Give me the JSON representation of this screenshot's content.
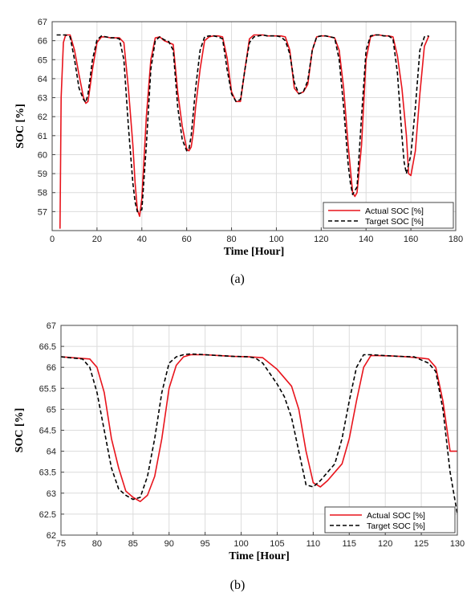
{
  "chart_data": [
    {
      "type": "line",
      "caption": "(a)",
      "xlabel": "Time [Hour]",
      "ylabel": "SOC [%]",
      "xlim": [
        0,
        180
      ],
      "ylim": [
        56,
        67
      ],
      "xticks": [
        0,
        20,
        40,
        60,
        80,
        100,
        120,
        140,
        160,
        180
      ],
      "yticks": [
        57,
        58,
        59,
        60,
        61,
        62,
        63,
        64,
        65,
        66,
        67
      ],
      "grid": true,
      "legend_position": "bottom-right",
      "series": [
        {
          "name": "Actual SOC [%]",
          "color": "#e8141c",
          "style": "solid",
          "x": [
            3.5,
            4,
            5,
            6,
            8,
            10,
            12,
            14,
            15,
            16,
            18,
            20,
            22,
            24,
            26,
            28,
            30,
            32,
            34,
            36,
            37,
            38,
            39,
            40,
            42,
            44,
            46,
            48,
            50,
            52,
            54,
            56,
            58,
            60,
            61,
            62,
            63,
            64,
            66,
            68,
            70,
            72,
            74,
            76,
            78,
            80,
            82,
            84,
            86,
            88,
            90,
            92,
            94,
            96,
            98,
            100,
            102,
            104,
            106,
            108,
            110,
            112,
            114,
            116,
            118,
            120,
            122,
            124,
            126,
            128,
            130,
            132,
            134,
            135,
            136,
            138,
            140,
            142,
            144,
            146,
            148,
            150,
            152,
            154,
            156,
            158,
            159,
            160,
            162,
            164,
            166,
            168
          ],
          "values": [
            56.1,
            63.0,
            65.9,
            66.3,
            66.3,
            65.5,
            64.2,
            63.0,
            62.7,
            62.8,
            64.5,
            65.9,
            66.2,
            66.2,
            66.15,
            66.15,
            66.15,
            65.9,
            63.5,
            60.5,
            58.5,
            57.1,
            56.75,
            57.7,
            62.0,
            65.0,
            66.15,
            66.2,
            66.0,
            65.9,
            65.8,
            63.3,
            61.5,
            60.3,
            60.2,
            60.4,
            61.2,
            62.5,
            64.5,
            66.0,
            66.2,
            66.25,
            66.25,
            66.2,
            65.1,
            63.3,
            62.8,
            62.8,
            64.5,
            66.1,
            66.3,
            66.3,
            66.3,
            66.25,
            66.25,
            66.25,
            66.25,
            66.2,
            65.5,
            63.5,
            63.2,
            63.3,
            63.7,
            65.5,
            66.2,
            66.25,
            66.25,
            66.2,
            66.15,
            65.5,
            63.5,
            60.5,
            58.0,
            57.8,
            58.0,
            60.5,
            65.0,
            66.2,
            66.3,
            66.3,
            66.25,
            66.25,
            66.2,
            65.2,
            63.5,
            61.0,
            59.0,
            58.9,
            60.2,
            63.2,
            65.7,
            66.25
          ]
        },
        {
          "name": "Target SOC [%]",
          "color": "#000000",
          "style": "dashed",
          "x": [
            2,
            4,
            6,
            8,
            10,
            12,
            14,
            15,
            16,
            18,
            20,
            22,
            24,
            26,
            28,
            30,
            32,
            34,
            36,
            37,
            38,
            40,
            42,
            44,
            46,
            48,
            50,
            52,
            54,
            56,
            58,
            60,
            61,
            62,
            64,
            66,
            68,
            70,
            72,
            74,
            76,
            78,
            80,
            82,
            84,
            86,
            88,
            90,
            92,
            94,
            96,
            98,
            100,
            102,
            104,
            106,
            108,
            110,
            112,
            114,
            116,
            118,
            120,
            122,
            124,
            126,
            128,
            130,
            132,
            133,
            134,
            136,
            138,
            140,
            142,
            144,
            146,
            148,
            150,
            152,
            154,
            156,
            157,
            158,
            160,
            162,
            164,
            166,
            168
          ],
          "values": [
            66.3,
            66.3,
            66.3,
            66.2,
            65.0,
            63.5,
            62.9,
            62.75,
            63.2,
            65.0,
            66.05,
            66.25,
            66.2,
            66.15,
            66.15,
            66.1,
            65.0,
            61.5,
            58.5,
            57.5,
            57.0,
            57.1,
            60.5,
            64.5,
            66.0,
            66.2,
            66.05,
            65.95,
            65.5,
            62.5,
            60.8,
            60.2,
            60.3,
            61.0,
            63.5,
            65.5,
            66.2,
            66.25,
            66.25,
            66.2,
            66.1,
            64.5,
            63.2,
            62.8,
            62.9,
            64.5,
            65.9,
            66.2,
            66.25,
            66.3,
            66.25,
            66.25,
            66.25,
            66.2,
            66.0,
            65.3,
            63.8,
            63.2,
            63.3,
            63.9,
            65.5,
            66.2,
            66.25,
            66.25,
            66.2,
            66.15,
            65.0,
            62.5,
            59.5,
            58.5,
            57.9,
            58.3,
            62.0,
            65.5,
            66.25,
            66.3,
            66.3,
            66.25,
            66.25,
            66.1,
            64.3,
            61.0,
            59.6,
            59.0,
            60.0,
            62.5,
            65.5,
            66.2,
            66.25
          ]
        }
      ]
    },
    {
      "type": "line",
      "caption": "(b)",
      "xlabel": "Time [Hour]",
      "ylabel": "SOC [%]",
      "xlim": [
        75,
        130
      ],
      "ylim": [
        62,
        67
      ],
      "xticks": [
        75,
        80,
        85,
        90,
        95,
        100,
        105,
        110,
        115,
        120,
        125,
        130
      ],
      "yticks": [
        62,
        62.5,
        63,
        63.5,
        64,
        64.5,
        65,
        65.5,
        66,
        66.5,
        67
      ],
      "grid": true,
      "legend_position": "bottom-right",
      "series": [
        {
          "name": "Actual SOC [%]",
          "color": "#e8141c",
          "style": "solid",
          "x": [
            75,
            79,
            80,
            81,
            82,
            83,
            84,
            85,
            86,
            87,
            88,
            89,
            90,
            91,
            92,
            93,
            95,
            97,
            99,
            101,
            103,
            105,
            107,
            108,
            109,
            110,
            111,
            112,
            113,
            114,
            115,
            116,
            117,
            118,
            119,
            121,
            123,
            125,
            126,
            127,
            128,
            129,
            130
          ],
          "values": [
            66.25,
            66.2,
            66.0,
            65.4,
            64.3,
            63.6,
            63.05,
            62.9,
            62.8,
            62.95,
            63.4,
            64.3,
            65.5,
            66.05,
            66.25,
            66.3,
            66.3,
            66.28,
            66.26,
            66.25,
            66.23,
            65.95,
            65.55,
            65.0,
            64.0,
            63.25,
            63.15,
            63.3,
            63.5,
            63.7,
            64.3,
            65.2,
            66.0,
            66.28,
            66.28,
            66.27,
            66.25,
            66.22,
            66.2,
            66.0,
            65.2,
            64.0,
            64.0
          ]
        },
        {
          "name": "Target SOC [%]",
          "color": "#000000",
          "style": "dashed",
          "x": [
            75,
            78,
            79,
            80,
            81,
            82,
            83,
            84,
            85,
            86,
            87,
            88,
            89,
            90,
            91,
            92,
            93,
            95,
            97,
            99,
            101,
            102,
            103,
            104,
            105,
            106,
            107,
            108,
            109,
            110,
            111,
            112,
            113,
            114,
            115,
            116,
            117,
            118,
            120,
            122,
            124,
            126,
            127,
            128,
            129,
            130
          ],
          "values": [
            66.25,
            66.2,
            66.0,
            65.4,
            64.5,
            63.6,
            63.1,
            62.95,
            62.85,
            62.9,
            63.4,
            64.3,
            65.4,
            66.1,
            66.25,
            66.3,
            66.32,
            66.3,
            66.28,
            66.26,
            66.25,
            66.22,
            66.1,
            65.85,
            65.6,
            65.3,
            64.8,
            64.0,
            63.2,
            63.15,
            63.3,
            63.5,
            63.7,
            64.3,
            65.2,
            66.0,
            66.3,
            66.3,
            66.28,
            66.26,
            66.25,
            66.1,
            65.9,
            65.0,
            63.5,
            62.5
          ]
        }
      ]
    }
  ]
}
